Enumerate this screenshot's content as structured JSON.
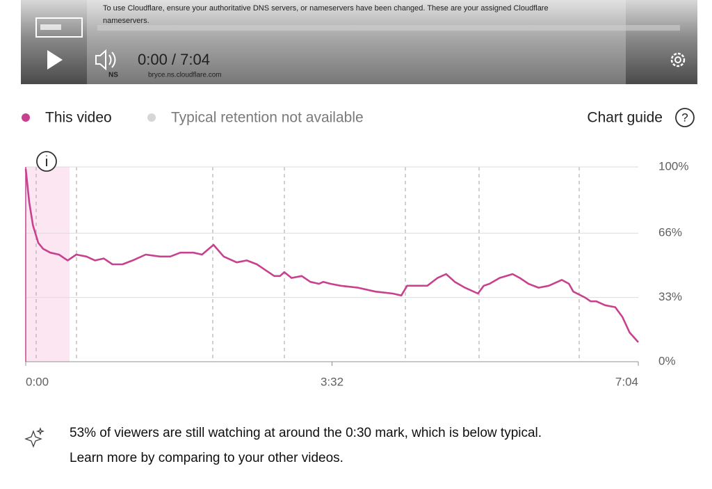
{
  "player": {
    "notice": "To use Cloudflare, ensure your authoritative DNS servers, or nameservers have been changed. These are your assigned Cloudflare",
    "notice_cont": "nameservers.",
    "ns_label": "NS",
    "ns_value": "bryce.ns.cloudflare.com",
    "time": "0:00 / 7:04"
  },
  "legend": {
    "typical": "Typical retention not available",
    "guide": "Chart guide",
    "guide_icon": "?"
  },
  "chart_data": {
    "type": "line",
    "x": [
      0,
      2.4,
      5,
      8.7,
      12,
      17,
      23,
      29,
      35,
      42,
      48,
      54,
      60,
      67,
      74,
      83,
      93,
      100,
      107,
      116,
      122,
      130,
      137,
      146,
      153,
      160,
      168,
      172,
      176,
      179,
      184,
      191,
      197,
      203,
      206,
      211,
      218,
      230,
      242,
      254,
      260,
      264,
      271,
      278,
      285,
      291,
      297,
      304,
      313,
      317,
      321,
      328,
      337,
      342,
      348,
      355,
      362,
      371,
      376,
      379,
      387,
      391,
      395,
      401,
      408,
      413,
      418,
      424
    ],
    "series": [
      {
        "name": "This video",
        "color": "#c7418f",
        "values": [
          99,
          82,
          70,
          61,
          58,
          56,
          55,
          52,
          55,
          54,
          52,
          53,
          50,
          50,
          52,
          55,
          54,
          54,
          56,
          56,
          55,
          60,
          54,
          51,
          52,
          50,
          46,
          44,
          44,
          46,
          43,
          44,
          41,
          40,
          41,
          40,
          39,
          38,
          36,
          35,
          34,
          39,
          39,
          39,
          43,
          45,
          41,
          38,
          35,
          39,
          40,
          43,
          45,
          43,
          40,
          38,
          39,
          42,
          40,
          36,
          33,
          31,
          31,
          29,
          28,
          23,
          15,
          10
        ]
      }
    ],
    "xlim": [
      0,
      424
    ],
    "xticks": [
      {
        "value": 0,
        "label": "0:00"
      },
      {
        "value": 212,
        "label": "3:32"
      },
      {
        "value": 424,
        "label": "7:04"
      }
    ],
    "ylim": [
      0,
      100
    ],
    "yticks": [
      {
        "value": 0,
        "label": "0%"
      },
      {
        "value": 33,
        "label": "33%"
      },
      {
        "value": 66,
        "label": "66%"
      },
      {
        "value": 100,
        "label": "100%"
      }
    ],
    "grid": true
  },
  "insight": {
    "lines": [
      "53% of viewers are still watching at around the 0:30 mark, which is below typical.",
      "Learn more by comparing to your other videos."
    ]
  }
}
